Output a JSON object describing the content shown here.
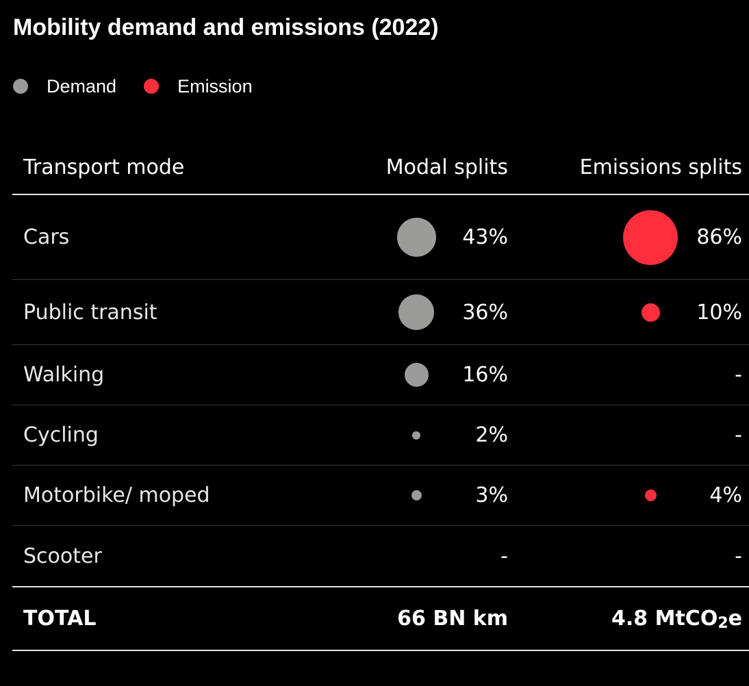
{
  "title": "Mobility demand and emissions (2022)",
  "legend": [
    {
      "label": "Demand",
      "color": "#9b9b99"
    },
    {
      "label": "Emission",
      "color": "#ff2e3d"
    }
  ],
  "headers": {
    "mode": "Transport mode",
    "modal": "Modal splits",
    "emissions": "Emissions splits"
  },
  "colors": {
    "demand": "#9b9b99",
    "emission": "#ff2e3d"
  },
  "chart_data": {
    "type": "table",
    "title": "Mobility demand and emissions (2022)",
    "columns": [
      "Transport mode",
      "Modal splits",
      "Emissions splits"
    ],
    "rows": [
      {
        "mode": "Cars",
        "modal": 43,
        "modal_label": "43%",
        "emission": 86,
        "emission_label": "86%"
      },
      {
        "mode": "Public transit",
        "modal": 36,
        "modal_label": "36%",
        "emission": 10,
        "emission_label": "10%"
      },
      {
        "mode": "Walking",
        "modal": 16,
        "modal_label": "16%",
        "emission": null,
        "emission_label": "-"
      },
      {
        "mode": "Cycling",
        "modal": 2,
        "modal_label": "2%",
        "emission": null,
        "emission_label": "-"
      },
      {
        "mode": "Motorbike/ moped",
        "modal": 3,
        "modal_label": "3%",
        "emission": 4,
        "emission_label": "4%"
      },
      {
        "mode": "Scooter",
        "modal": null,
        "modal_label": "-",
        "emission": null,
        "emission_label": "-"
      }
    ],
    "total": {
      "label": "TOTAL",
      "modal": "66 BN km",
      "emission_prefix": "4.8 MtCO",
      "emission_sub": "2",
      "emission_suffix": "e"
    }
  }
}
